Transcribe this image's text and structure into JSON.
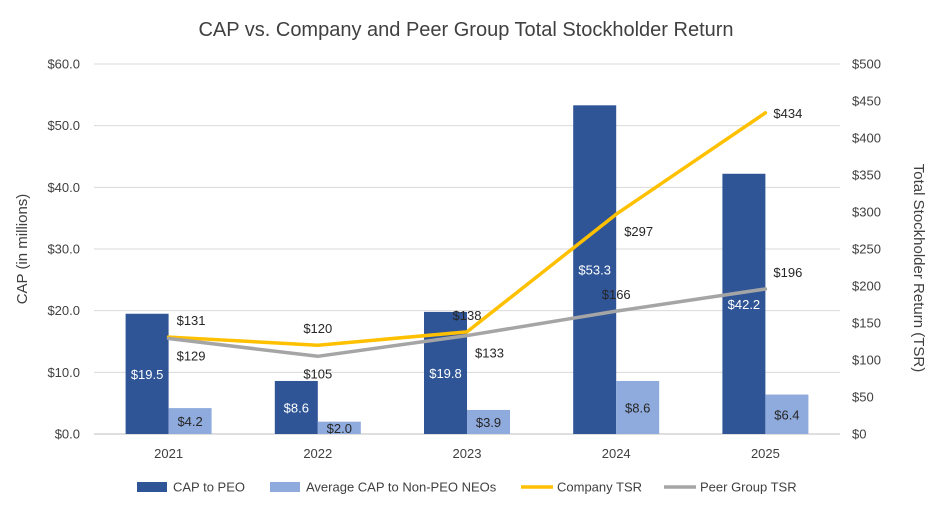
{
  "chart_data": {
    "type": "bar",
    "title": "CAP vs. Company and Peer Group Total Stockholder Return",
    "categories": [
      "2021",
      "2022",
      "2023",
      "2024",
      "2025"
    ],
    "ylabel": "CAP (in millions)",
    "ylabel_right": "Total Stockholder Return (TSR)",
    "ylim": [
      0,
      60
    ],
    "ylim_right": [
      0,
      500
    ],
    "yticks": [
      "$0.0",
      "$10.0",
      "$20.0",
      "$30.0",
      "$40.0",
      "$50.0",
      "$60.0"
    ],
    "yticks_right": [
      "$0",
      "$50",
      "$100",
      "$150",
      "$200",
      "$250",
      "$300",
      "$350",
      "$400",
      "$450",
      "$500"
    ],
    "grid": true,
    "legend_position": "bottom",
    "series": [
      {
        "name": "CAP to PEO",
        "kind": "bar",
        "axis": "left",
        "color": "#2f5597",
        "values": [
          19.5,
          8.6,
          19.8,
          53.3,
          42.2
        ],
        "labels": [
          "$19.5",
          "$8.6",
          "$19.8",
          "$53.3",
          "$42.2"
        ]
      },
      {
        "name": "Average CAP to Non-PEO NEOs",
        "kind": "bar",
        "axis": "left",
        "color": "#8faadc",
        "values": [
          4.2,
          2.0,
          3.9,
          8.6,
          6.4
        ],
        "labels": [
          "$4.2",
          "$2.0",
          "$3.9",
          "$8.6",
          "$6.4"
        ]
      },
      {
        "name": "Company TSR",
        "kind": "line",
        "axis": "right",
        "color": "#ffc000",
        "values": [
          131,
          120,
          138,
          297,
          434
        ],
        "labels": [
          "$131",
          "$120",
          "$138",
          "$297",
          "$434"
        ]
      },
      {
        "name": "Peer Group TSR",
        "kind": "line",
        "axis": "right",
        "color": "#a5a5a5",
        "values": [
          129,
          105,
          133,
          166,
          196
        ],
        "labels": [
          "$129",
          "$105",
          "$133",
          "$166",
          "$196"
        ]
      }
    ]
  }
}
